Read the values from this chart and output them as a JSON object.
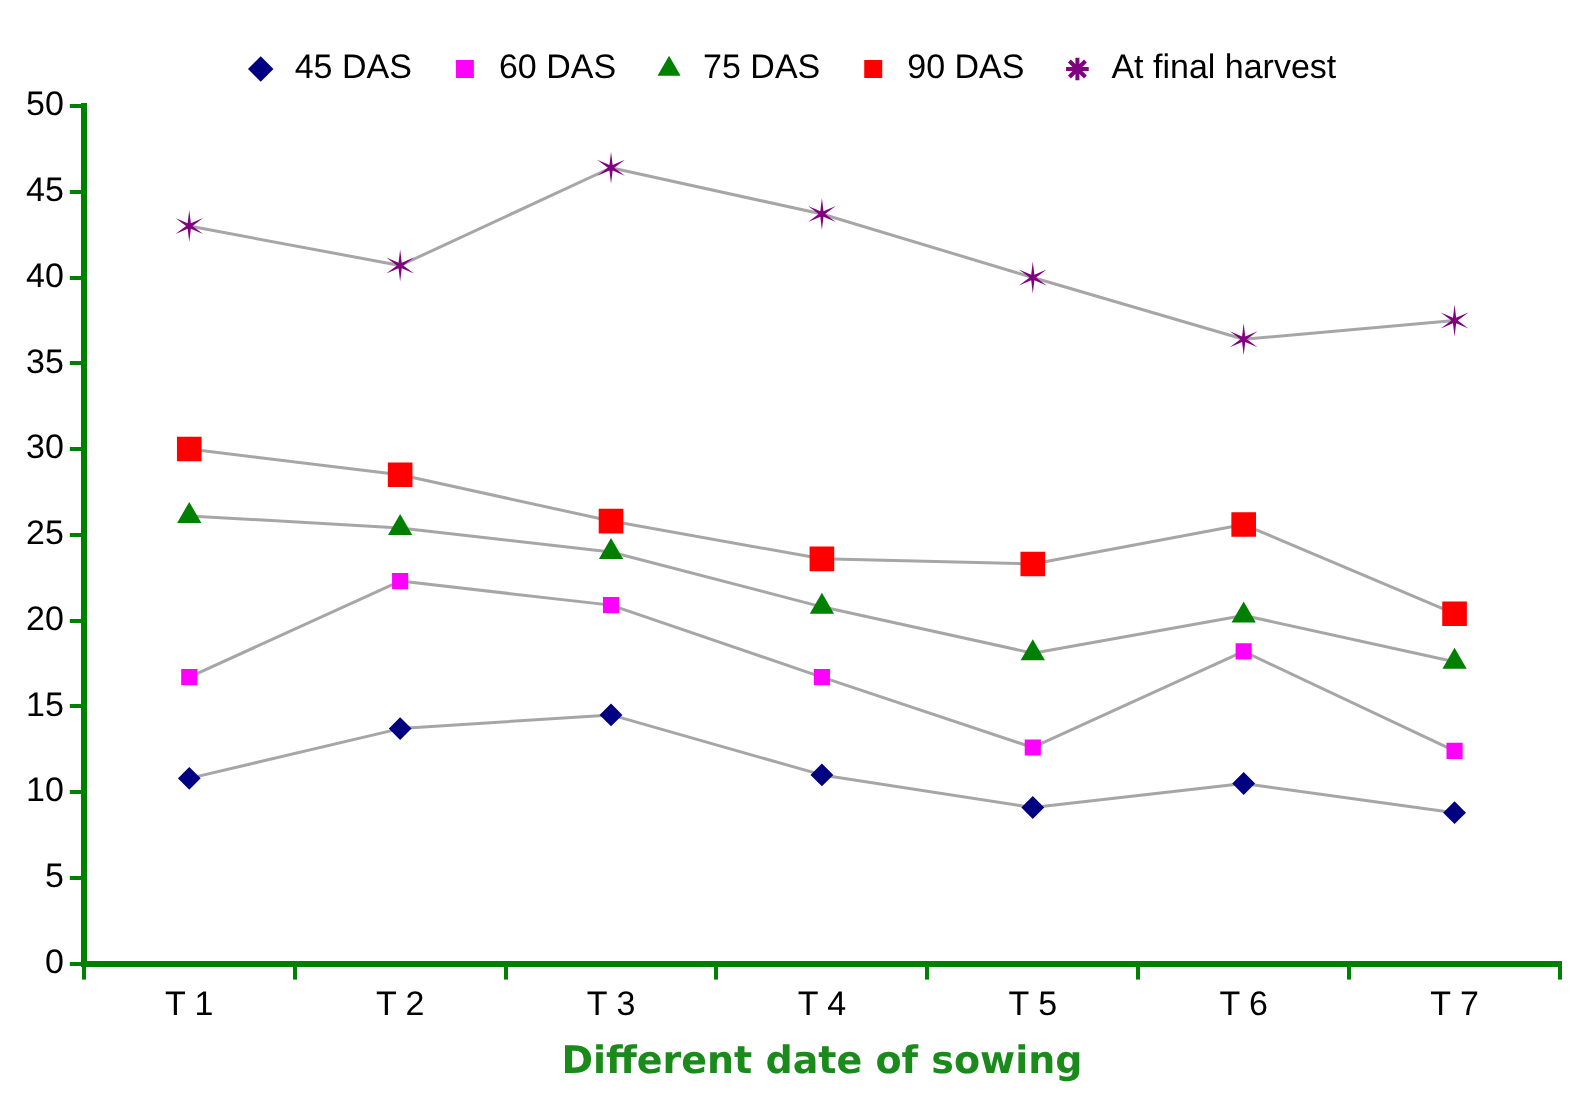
{
  "chart_data": {
    "type": "line",
    "xlabel": "Different date of sowing",
    "categories": [
      "T 1",
      "T 2",
      "T 3",
      "T 4",
      "T 5",
      "T 6",
      "T 7"
    ],
    "series": [
      {
        "name": "45 DAS",
        "color": "#000080",
        "marker": "diamond",
        "values": [
          10.8,
          13.7,
          14.5,
          11.0,
          9.1,
          10.5,
          8.8
        ]
      },
      {
        "name": "60 DAS",
        "color": "#ff00ff",
        "marker": "square",
        "values": [
          16.7,
          22.3,
          20.9,
          16.7,
          12.6,
          18.2,
          12.4
        ]
      },
      {
        "name": "75 DAS",
        "color": "#008000",
        "marker": "triangle",
        "values": [
          26.1,
          25.4,
          24.0,
          20.8,
          18.1,
          20.3,
          17.6
        ]
      },
      {
        "name": "90 DAS",
        "color": "#ff0000",
        "marker": "square",
        "values": [
          30.0,
          28.5,
          25.8,
          23.6,
          23.3,
          25.6,
          20.4
        ]
      },
      {
        "name": "At final harvest",
        "color": "#800080",
        "marker": "cross",
        "values": [
          43.0,
          40.7,
          46.4,
          43.7,
          40.0,
          36.4,
          37.5
        ]
      }
    ],
    "ylim": [
      0,
      50
    ],
    "yticks": [
      0,
      5,
      10,
      15,
      20,
      25,
      30,
      35,
      40,
      45,
      50
    ],
    "grid": false,
    "legend": "top"
  }
}
